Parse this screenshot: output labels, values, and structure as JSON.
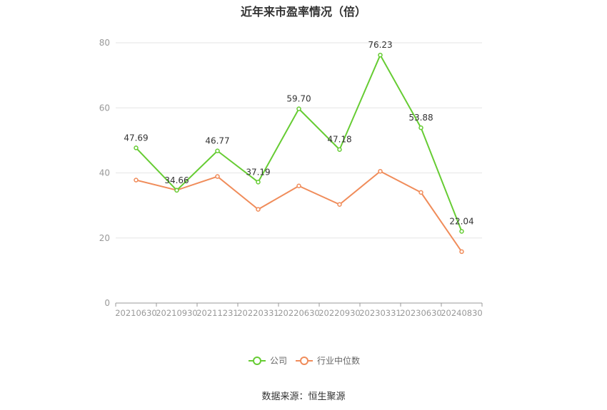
{
  "title": "近年来市盈率情况（倍）",
  "source": "数据来源：恒生聚源",
  "chart_data": {
    "type": "line",
    "categories": [
      "20210630",
      "20210930",
      "20211231",
      "20220331",
      "20220630",
      "20220930",
      "20230331",
      "20230630",
      "20240830"
    ],
    "ylim": [
      0,
      80
    ],
    "yticks": [
      0,
      20,
      40,
      60,
      80
    ],
    "grid": true,
    "legend_position": "bottom",
    "series": [
      {
        "name": "公司",
        "color": "#66cc33",
        "values": [
          47.69,
          34.66,
          46.77,
          37.19,
          59.7,
          47.18,
          76.23,
          53.88,
          22.04
        ],
        "labels": [
          "47.69",
          "34.66",
          "46.77",
          "37.19",
          "59.70",
          "47.18",
          "76.23",
          "53.88",
          "22.04"
        ]
      },
      {
        "name": "行业中位数",
        "color": "#f08c5a",
        "values": [
          37.8,
          34.7,
          38.9,
          28.8,
          36.0,
          30.3,
          40.5,
          34.0,
          15.8
        ]
      }
    ]
  }
}
